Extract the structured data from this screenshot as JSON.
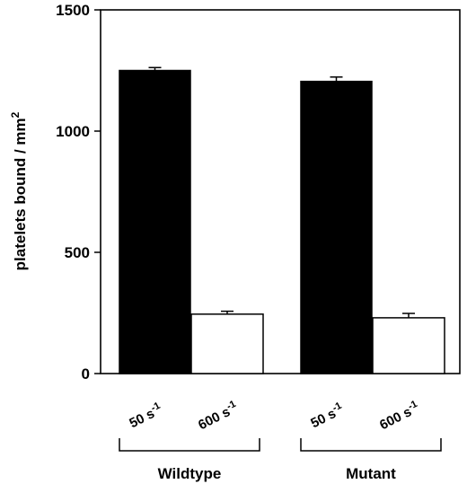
{
  "chart_data": {
    "type": "bar",
    "title": "",
    "xlabel": "",
    "ylabel": "platelets bound / mm",
    "ylabel_superscript": "2",
    "ylim": [
      0,
      1500
    ],
    "yticks": [
      0,
      500,
      1000,
      1500
    ],
    "grid": false,
    "legend": "none",
    "groups": [
      {
        "name": "Wildtype",
        "bars": [
          {
            "rate": "50",
            "unit": "s",
            "exponent": "-1",
            "value": 1250,
            "error": 12,
            "fill": "#000000"
          },
          {
            "rate": "600",
            "unit": "s",
            "exponent": "-1",
            "value": 245,
            "error": 12,
            "fill": "#ffffff"
          }
        ]
      },
      {
        "name": "Mutant",
        "bars": [
          {
            "rate": "50",
            "unit": "s",
            "exponent": "-1",
            "value": 1205,
            "error": 18,
            "fill": "#000000"
          },
          {
            "rate": "600",
            "unit": "s",
            "exponent": "-1",
            "value": 230,
            "error": 18,
            "fill": "#ffffff"
          }
        ]
      }
    ]
  }
}
